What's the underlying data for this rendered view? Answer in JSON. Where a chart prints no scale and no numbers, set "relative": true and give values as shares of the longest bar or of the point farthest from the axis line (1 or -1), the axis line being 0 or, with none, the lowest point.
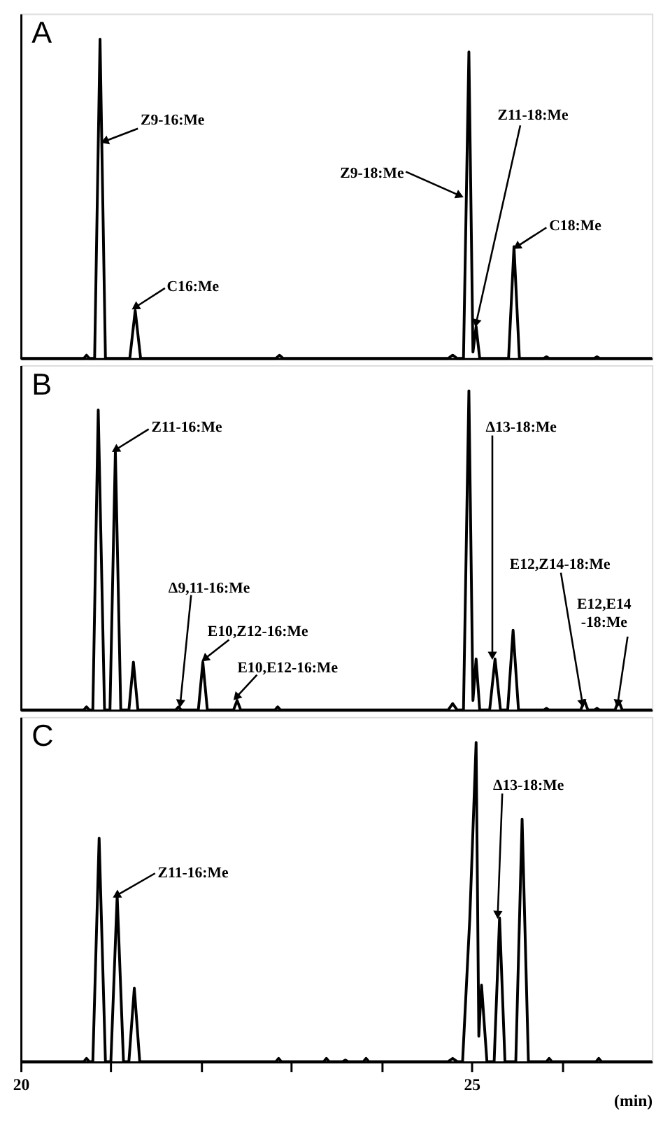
{
  "chart_data": [
    {
      "type": "line",
      "title": "A",
      "relative": true,
      "xlim": [
        20,
        27
      ],
      "tick_labels": false,
      "color": "#000000",
      "line_style": "solid",
      "marker": "none",
      "x": [
        20.0,
        20.7,
        20.73,
        20.76,
        20.82,
        20.88,
        20.94,
        21.21,
        21.27,
        21.33,
        22.83,
        22.87,
        22.91,
        24.74,
        24.79,
        24.84,
        24.91,
        24.97,
        25.015,
        25.05,
        25.09,
        25.41,
        25.47,
        25.53,
        25.8,
        25.83,
        25.86,
        26.36,
        26.39,
        26.42,
        27.0
      ],
      "values": [
        0,
        0,
        0.01,
        0,
        0,
        1.0,
        0,
        0,
        0.15,
        0,
        0,
        0.01,
        0,
        0,
        0.01,
        0,
        0,
        0.96,
        0.02,
        0.1,
        0,
        0,
        0.35,
        0,
        0,
        0.005,
        0,
        0,
        0.005,
        0,
        0
      ],
      "annotations": [
        {
          "text": "Z9-16:Me",
          "x": 20.93,
          "y": 0.68
        },
        {
          "text": "C16:Me",
          "x": 21.27,
          "y": 0.16
        },
        {
          "text": "Z9-18:Me",
          "x": 24.87,
          "y": 0.51
        },
        {
          "text": "Z11-18:Me",
          "x": 25.05,
          "y": 0.11
        },
        {
          "text": "C18:Me",
          "x": 25.5,
          "y": 0.35
        }
      ]
    },
    {
      "type": "line",
      "title": "B",
      "relative": true,
      "xlim": [
        20,
        27
      ],
      "tick_labels": false,
      "color": "#000000",
      "line_style": "solid",
      "marker": "none",
      "x": [
        20.0,
        20.7,
        20.73,
        20.76,
        20.8,
        20.86,
        20.93,
        20.99,
        21.05,
        21.11,
        21.2,
        21.25,
        21.3,
        21.72,
        21.75,
        21.78,
        21.97,
        22.02,
        22.07,
        22.36,
        22.4,
        22.44,
        22.82,
        22.85,
        22.88,
        24.74,
        24.79,
        24.84,
        24.91,
        24.97,
        25.015,
        25.05,
        25.09,
        25.2,
        25.26,
        25.32,
        25.4,
        25.46,
        25.52,
        25.8,
        25.83,
        25.86,
        26.21,
        26.25,
        26.29,
        26.36,
        26.39,
        26.42,
        26.59,
        26.63,
        26.67,
        27.0
      ],
      "values": [
        0,
        0,
        0.01,
        0,
        0,
        0.94,
        0,
        0,
        0.81,
        0,
        0,
        0.15,
        0,
        0,
        0.01,
        0,
        0,
        0.15,
        0,
        0,
        0.03,
        0,
        0,
        0.01,
        0,
        0,
        0.02,
        0,
        0,
        1.0,
        0.03,
        0.16,
        0,
        0,
        0.16,
        0,
        0,
        0.25,
        0,
        0,
        0.005,
        0,
        0,
        0.03,
        0,
        0,
        0.005,
        0,
        0,
        0.03,
        0,
        0
      ],
      "annotations": [
        {
          "text": "Z11-16:Me",
          "x": 21.05,
          "y": 0.815
        },
        {
          "text": "Δ9,11-16:Me",
          "x": 21.77,
          "y": 0.02
        },
        {
          "text": "E10,Z12-16:Me",
          "x": 22.04,
          "y": 0.16
        },
        {
          "text": "E10,E12-16:Me",
          "x": 22.39,
          "y": 0.04
        },
        {
          "text": "Δ13-18:Me",
          "x": 25.23,
          "y": 0.17
        },
        {
          "text": "E12,Z14-18:Me",
          "x": 26.23,
          "y": 0.02
        },
        {
          "text": "E12,E14\n-18:Me",
          "x": 26.62,
          "y": 0.02
        }
      ]
    },
    {
      "type": "line",
      "title": "C",
      "relative": true,
      "xlim": [
        20,
        27
      ],
      "tick_labels": "x",
      "xlabel": "(min)",
      "color": "#000000",
      "line_style": "solid",
      "marker": "none",
      "xticks": [
        20,
        {
          "value": 21,
          "label": null
        },
        {
          "value": 22,
          "label": null
        },
        {
          "value": 23,
          "label": null
        },
        {
          "value": 24,
          "label": null
        },
        25,
        {
          "value": 26,
          "label": null
        }
      ],
      "x": [
        20.0,
        20.7,
        20.73,
        20.76,
        20.8,
        20.87,
        20.94,
        21.0,
        21.07,
        21.14,
        21.2,
        21.26,
        21.32,
        22.83,
        22.86,
        22.89,
        23.36,
        23.39,
        23.42,
        23.57,
        23.6,
        23.63,
        23.8,
        23.83,
        23.86,
        24.74,
        24.79,
        24.84,
        24.9,
        24.98,
        25.05,
        25.08,
        25.11,
        25.17,
        25.25,
        25.31,
        25.37,
        25.49,
        25.56,
        25.63,
        25.83,
        25.86,
        25.89,
        26.38,
        26.41,
        26.44,
        27.0
      ],
      "values": [
        0,
        0,
        0.01,
        0,
        0,
        0.7,
        0,
        0,
        0.52,
        0,
        0,
        0.23,
        0,
        0,
        0.01,
        0,
        0,
        0.01,
        0,
        0,
        0.005,
        0,
        0,
        0.01,
        0,
        0,
        0.01,
        0,
        0,
        0.45,
        1.0,
        0.08,
        0.24,
        0,
        0,
        0.45,
        0,
        0,
        0.76,
        0,
        0,
        0.01,
        0,
        0,
        0.01,
        0,
        0
      ],
      "annotations": [
        {
          "text": "Z11-16:Me",
          "x": 21.06,
          "y": 0.52
        },
        {
          "text": "Δ13-18:Me",
          "x": 25.29,
          "y": 0.46
        }
      ]
    }
  ]
}
